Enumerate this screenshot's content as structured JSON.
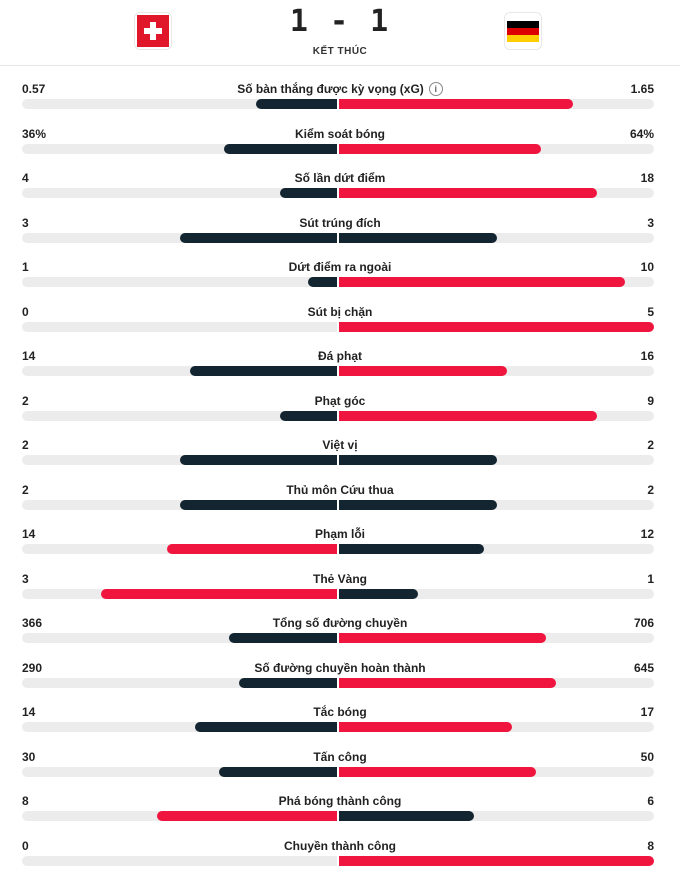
{
  "match": {
    "home_score": "1",
    "separator": "-",
    "away_score": "1",
    "status": "KẾT THÚC",
    "home_flag": "switzerland-flag",
    "away_flag": "germany-flag"
  },
  "colors": {
    "winner": "#f0153f",
    "loser": "#132531",
    "track": "#ececec"
  },
  "stats": [
    {
      "label": "Số bàn thắng được kỳ vọng (xG)",
      "home": "0.57",
      "away": "1.65",
      "home_value": 0.57,
      "away_value": 1.65,
      "info": true
    },
    {
      "label": "Kiểm soát bóng",
      "home": "36%",
      "away": "64%",
      "home_value": 36,
      "away_value": 64
    },
    {
      "label": "Số lần dứt điểm",
      "home": "4",
      "away": "18",
      "home_value": 4,
      "away_value": 18
    },
    {
      "label": "Sút trúng đích",
      "home": "3",
      "away": "3",
      "home_value": 3,
      "away_value": 3
    },
    {
      "label": "Dứt điểm ra ngoài",
      "home": "1",
      "away": "10",
      "home_value": 1,
      "away_value": 10
    },
    {
      "label": "Sút bị chặn",
      "home": "0",
      "away": "5",
      "home_value": 0,
      "away_value": 5
    },
    {
      "label": "Đá phạt",
      "home": "14",
      "away": "16",
      "home_value": 14,
      "away_value": 16
    },
    {
      "label": "Phạt góc",
      "home": "2",
      "away": "9",
      "home_value": 2,
      "away_value": 9
    },
    {
      "label": "Việt vị",
      "home": "2",
      "away": "2",
      "home_value": 2,
      "away_value": 2
    },
    {
      "label": "Thủ môn Cứu thua",
      "home": "2",
      "away": "2",
      "home_value": 2,
      "away_value": 2
    },
    {
      "label": "Phạm lỗi",
      "home": "14",
      "away": "12",
      "home_value": 14,
      "away_value": 12
    },
    {
      "label": "Thẻ Vàng",
      "home": "3",
      "away": "1",
      "home_value": 3,
      "away_value": 1
    },
    {
      "label": "Tổng số đường chuyền",
      "home": "366",
      "away": "706",
      "home_value": 366,
      "away_value": 706
    },
    {
      "label": "Số đường chuyền hoàn thành",
      "home": "290",
      "away": "645",
      "home_value": 290,
      "away_value": 645
    },
    {
      "label": "Tắc bóng",
      "home": "14",
      "away": "17",
      "home_value": 14,
      "away_value": 17
    },
    {
      "label": "Tấn công",
      "home": "30",
      "away": "50",
      "home_value": 30,
      "away_value": 50
    },
    {
      "label": "Phá bóng thành công",
      "home": "8",
      "away": "6",
      "home_value": 8,
      "away_value": 6
    },
    {
      "label": "Chuyền thành công",
      "home": "0",
      "away": "8",
      "home_value": 0,
      "away_value": 8
    }
  ]
}
